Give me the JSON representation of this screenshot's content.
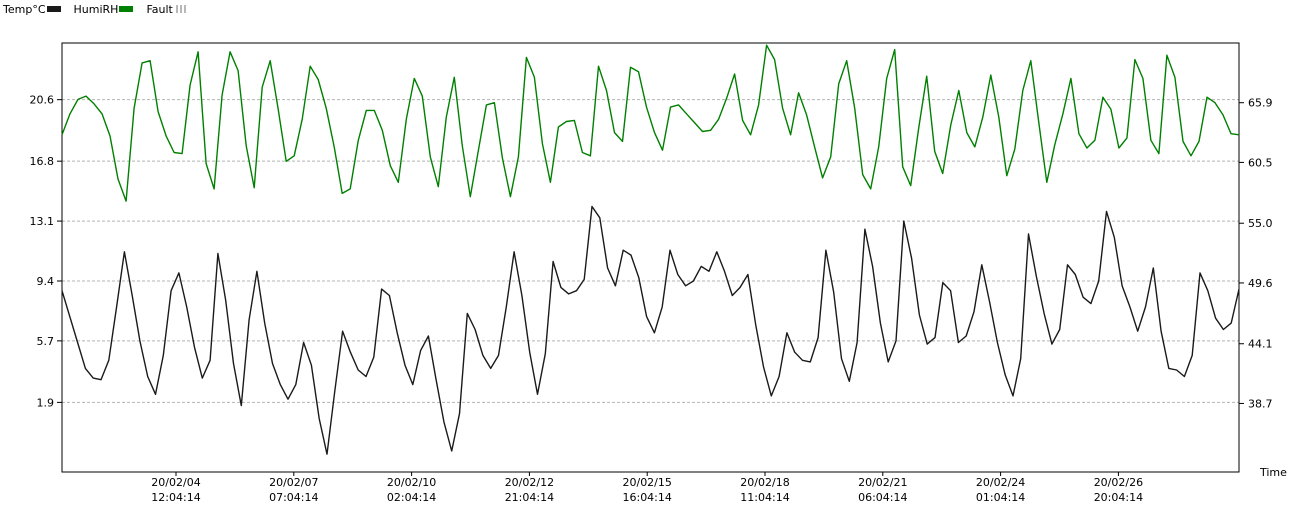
{
  "chart_data": {
    "type": "line",
    "legend": {
      "position": "top-left",
      "items": [
        {
          "name": "Temp°C",
          "color": "#1a1a1a"
        },
        {
          "name": "HumiRH",
          "color": "#008000"
        },
        {
          "name": "Fault",
          "color": "#b8b8b8"
        }
      ]
    },
    "xlabel": "Time",
    "x_ticks": [
      {
        "date": "20/02/04",
        "time": "12:04:14"
      },
      {
        "date": "20/02/07",
        "time": "07:04:14"
      },
      {
        "date": "20/02/10",
        "time": "02:04:14"
      },
      {
        "date": "20/02/12",
        "time": "21:04:14"
      },
      {
        "date": "20/02/15",
        "time": "16:04:14"
      },
      {
        "date": "20/02/18",
        "time": "11:04:14"
      },
      {
        "date": "20/02/21",
        "time": "06:04:14"
      },
      {
        "date": "20/02/24",
        "time": "01:04:14"
      },
      {
        "date": "20/02/26",
        "time": "20:04:14"
      }
    ],
    "y_left_ticks": [
      "20.6",
      "16.8",
      "13.1",
      "9.4",
      "5.7",
      "1.9"
    ],
    "y_right_ticks": [
      "65.9",
      "60.5",
      "55.0",
      "49.6",
      "44.1",
      "38.7"
    ],
    "y_left_range": [
      -2.4,
      24.1
    ],
    "y_right_range": [
      32.5,
      71.3
    ],
    "grid": true,
    "series": [
      {
        "name": "Temp°C",
        "axis": "left",
        "color": "#1a1a1a",
        "values": [
          8.8,
          7.2,
          5.6,
          4.0,
          3.4,
          3.3,
          4.5,
          7.8,
          11.2,
          8.5,
          5.7,
          3.5,
          2.4,
          4.8,
          8.8,
          9.9,
          7.8,
          5.3,
          3.4,
          4.5,
          11.1,
          8.2,
          4.3,
          1.7,
          7.0,
          10.0,
          6.8,
          4.3,
          3.0,
          2.1,
          3.0,
          5.6,
          4.2,
          0.9,
          -1.3,
          2.6,
          6.3,
          5.0,
          3.9,
          3.5,
          4.7,
          8.9,
          8.5,
          6.2,
          4.2,
          3.0,
          5.1,
          6.0,
          3.3,
          0.7,
          -1.1,
          1.2,
          7.4,
          6.4,
          4.8,
          4.0,
          4.8,
          7.8,
          11.2,
          8.5,
          5.0,
          2.4,
          4.9,
          10.6,
          9.0,
          8.6,
          8.8,
          9.5,
          14.0,
          13.3,
          10.2,
          9.1,
          11.3,
          11.0,
          9.6,
          7.2,
          6.2,
          7.8,
          11.3,
          9.8,
          9.1,
          9.4,
          10.3,
          10.0,
          11.2,
          10.0,
          8.5,
          9.0,
          9.8,
          6.7,
          4.1,
          2.3,
          3.5,
          6.2,
          5.0,
          4.5,
          4.4,
          5.9,
          11.3,
          8.7,
          4.6,
          3.2,
          5.6,
          12.6,
          10.3,
          6.8,
          4.4,
          5.7,
          13.1,
          10.8,
          7.3,
          5.5,
          5.9,
          9.3,
          8.8,
          5.6,
          6.0,
          7.5,
          10.4,
          8.1,
          5.6,
          3.6,
          2.3,
          4.6,
          12.3,
          9.7,
          7.4,
          5.5,
          6.4,
          10.4,
          9.8,
          8.4,
          8.0,
          9.4,
          13.7,
          12.1,
          9.1,
          7.8,
          6.3,
          7.8,
          10.2,
          6.3,
          4.0,
          3.9,
          3.5,
          4.8,
          9.9,
          8.8,
          7.1,
          6.4,
          6.8,
          8.9
        ]
      },
      {
        "name": "HumiRH",
        "axis": "right",
        "color": "#008000",
        "values": [
          63.0,
          64.9,
          66.2,
          66.5,
          65.8,
          64.9,
          62.9,
          59.0,
          57.0,
          65.4,
          69.5,
          69.7,
          65.1,
          62.9,
          61.4,
          61.3,
          67.5,
          70.5,
          60.4,
          58.1,
          66.6,
          70.5,
          68.8,
          62.0,
          58.2,
          67.3,
          69.7,
          65.3,
          60.6,
          61.1,
          64.4,
          69.2,
          68.0,
          65.4,
          61.9,
          57.7,
          58.1,
          62.5,
          65.2,
          65.2,
          63.4,
          60.2,
          58.7,
          64.4,
          68.1,
          66.5,
          61.0,
          58.3,
          64.6,
          68.2,
          62.0,
          57.4,
          61.6,
          65.7,
          65.9,
          60.9,
          57.4,
          61.0,
          70.0,
          68.2,
          62.2,
          58.7,
          63.7,
          64.2,
          64.3,
          61.4,
          61.1,
          69.2,
          67.0,
          63.2,
          62.4,
          69.1,
          68.7,
          65.5,
          63.2,
          61.6,
          65.5,
          65.7,
          64.9,
          64.1,
          63.3,
          63.4,
          64.4,
          66.3,
          68.5,
          64.3,
          63.0,
          65.7,
          71.1,
          69.8,
          65.4,
          63.0,
          66.8,
          64.8,
          61.9,
          59.1,
          61.0,
          67.6,
          69.7,
          65.4,
          59.4,
          58.1,
          61.9,
          68.1,
          70.7,
          60.1,
          58.4,
          63.6,
          68.3,
          61.5,
          59.5,
          63.9,
          67.0,
          63.2,
          61.9,
          64.6,
          68.4,
          64.6,
          59.3,
          61.7,
          67.0,
          69.7,
          64.1,
          58.7,
          62.1,
          64.9,
          68.1,
          63.1,
          61.8,
          62.5,
          66.4,
          65.3,
          61.8,
          62.7,
          69.8,
          68.1,
          62.5,
          61.3,
          70.2,
          68.2,
          62.4,
          61.1,
          62.4,
          66.4,
          65.9,
          64.8,
          63.1,
          63.0
        ]
      },
      {
        "name": "Fault",
        "axis": "left",
        "color": "#b8b8b8",
        "values": []
      }
    ]
  }
}
